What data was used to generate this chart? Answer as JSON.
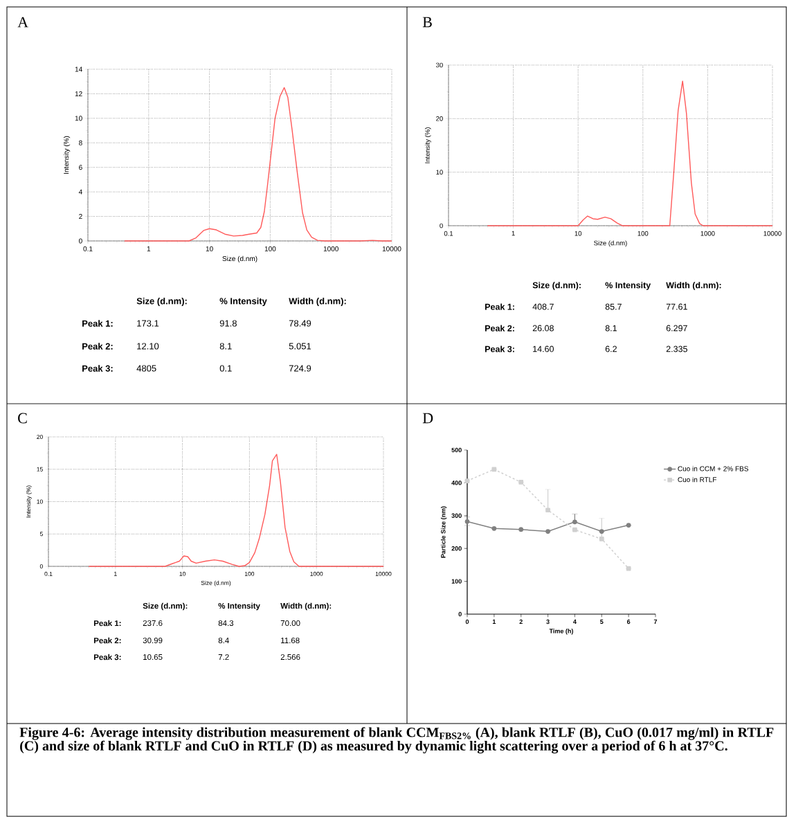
{
  "chart_data": [
    {
      "type": "line",
      "title": "A",
      "xlabel": "Size (d.nm)",
      "ylabel": "Intensity (%)",
      "log": "x",
      "grid": true,
      "xlim": [
        0.1,
        10000
      ],
      "ylim": [
        0,
        14
      ],
      "xticks": [
        0.1,
        1,
        10,
        100,
        1000,
        10000
      ],
      "yticks": [
        0,
        2,
        4,
        6,
        8,
        10,
        12,
        14
      ],
      "series": [
        {
          "color": "#ff5a5a",
          "x": [
            0.4,
            4.6,
            6,
            8,
            10,
            13,
            18,
            25,
            35,
            45,
            60,
            70,
            80,
            90,
            100,
            120,
            145,
            170,
            195,
            230,
            280,
            340,
            400,
            480,
            600,
            800,
            3000,
            4800,
            7000,
            10000
          ],
          "values": [
            0,
            0,
            0.25,
            0.85,
            1,
            0.9,
            0.55,
            0.4,
            0.45,
            0.55,
            0.65,
            1.1,
            2.4,
            4.5,
            6.5,
            10,
            11.8,
            12.5,
            11.7,
            9,
            5.5,
            2.3,
            0.9,
            0.3,
            0.05,
            0,
            0,
            0.05,
            0,
            0
          ]
        }
      ],
      "annotations": [
        "Size (d.nm):",
        "% Intensity",
        "Width (d.nm):",
        "Peak 1:",
        "173.1",
        "91.8",
        "78.49",
        "Peak 2:",
        "12.10",
        "8.1",
        "5.051",
        "Peak 3:",
        "4805",
        "0.1",
        "724.9"
      ]
    },
    {
      "type": "line",
      "title": "B",
      "xlabel": "Size (d.nm)",
      "ylabel": "Intensity (%)",
      "log": "x",
      "grid": true,
      "xlim": [
        0.1,
        10000
      ],
      "ylim": [
        0,
        30
      ],
      "xticks": [
        0.1,
        1,
        10,
        100,
        1000,
        10000
      ],
      "yticks": [
        0,
        10,
        20,
        30
      ],
      "series": [
        {
          "color": "#ff5a5a",
          "x": [
            0.4,
            10,
            12,
            14,
            17,
            20,
            26,
            32,
            40,
            48,
            260,
            300,
            350,
            410,
            470,
            560,
            640,
            750,
            850,
            10000
          ],
          "values": [
            0,
            0,
            1.1,
            1.8,
            1.3,
            1.2,
            1.6,
            1.3,
            0.5,
            0,
            0,
            10,
            21.5,
            27,
            21,
            8,
            2.2,
            0.4,
            0,
            0
          ]
        }
      ],
      "annotations": [
        "Size (d.nm):",
        "% Intensity",
        "Width (d.nm):",
        "Peak 1:",
        "408.7",
        "85.7",
        "77.61",
        "Peak 2:",
        "26.08",
        "8.1",
        "6.297",
        "Peak 3:",
        "14.60",
        "6.2",
        "2.335"
      ]
    },
    {
      "type": "line",
      "title": "C",
      "xlabel": "Size (d.nm)",
      "ylabel": "Intensity (%)",
      "log": "x",
      "grid": true,
      "xlim": [
        0.1,
        10000
      ],
      "ylim": [
        0,
        20
      ],
      "xticks": [
        0.1,
        1,
        10,
        100,
        1000,
        10000
      ],
      "yticks": [
        0,
        5,
        10,
        15,
        20
      ],
      "series": [
        {
          "color": "#ff5a5a",
          "x": [
            0.4,
            5.5,
            7,
            9,
            10.5,
            12,
            13.5,
            16,
            22,
            30,
            40,
            55,
            70,
            85,
            100,
            120,
            140,
            170,
            200,
            220,
            255,
            290,
            340,
            400,
            460,
            550,
            10000
          ],
          "values": [
            0,
            0,
            0.4,
            0.8,
            1.6,
            1.5,
            0.8,
            0.5,
            0.8,
            1,
            0.8,
            0.3,
            0,
            0.1,
            0.6,
            2.1,
            4.3,
            8,
            12.5,
            16.3,
            17.3,
            13,
            6,
            2.3,
            0.7,
            0,
            0
          ]
        }
      ],
      "annotations": [
        "Size (d.nm):",
        "% Intensity",
        "Width (d.nm):",
        "Peak 1:",
        "237.6",
        "84.3",
        "70.00",
        "Peak 2:",
        "30.99",
        "8.4",
        "11.68",
        "Peak 3:",
        "10.65",
        "7.2",
        "2.566"
      ]
    },
    {
      "type": "line",
      "title": "D",
      "xlabel": "Time (h)",
      "ylabel": "Particle Size (nm)",
      "legend": "right",
      "xlim": [
        0,
        7
      ],
      "ylim": [
        0,
        500
      ],
      "xticks": [
        0,
        1,
        2,
        3,
        4,
        5,
        6,
        7
      ],
      "yticks": [
        0,
        100,
        200,
        300,
        400,
        500
      ],
      "x": [
        0,
        1,
        2,
        3,
        4,
        5,
        6
      ],
      "series": [
        {
          "name": "Cuo in CCM + 2% FBS",
          "color": "#808080",
          "marker": "circle",
          "line_style": "solid",
          "values": [
            282,
            261,
            258,
            252,
            281,
            252,
            271
          ],
          "errors": [
            [
              270,
              296
            ],
            null,
            null,
            null,
            [
              281,
              305
            ],
            null,
            null
          ]
        },
        {
          "name": "Cuo in RTLF",
          "color": "#d0d0d0",
          "marker": "square",
          "line_style": "dashed",
          "values": [
            406,
            441,
            402,
            317,
            257,
            229,
            139
          ],
          "errors": [
            null,
            null,
            null,
            [
              317,
              380
            ],
            null,
            [
              229,
              292
            ],
            null
          ]
        }
      ],
      "annotations": [
        "Figure 4-6: Average intensity distribution measurement of blank CCM$_{FBS2%}$ (A), blank RTLF (B), CuO (0.017 mg/ml) in RTLF (C) and size of blank RTLF and CuO in RTLF (D) as measured by dynamic light scattering over a period of 6 h at 37°C."
      ]
    }
  ]
}
